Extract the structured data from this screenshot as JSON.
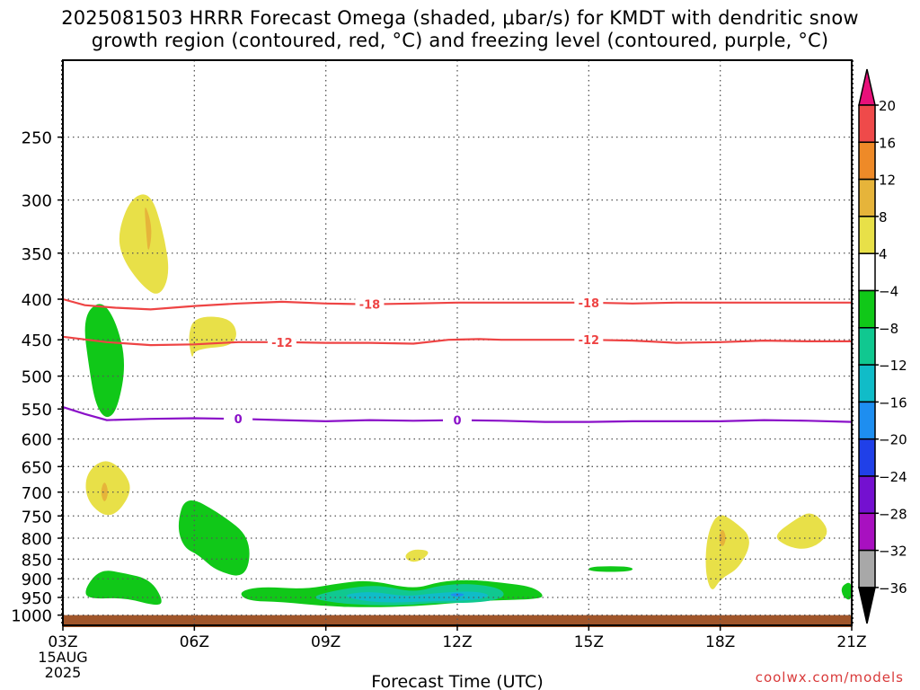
{
  "title": {
    "line1": "2025081503 HRRR Forecast Omega (shaded, μbar/s) for KMDT with dendritic snow",
    "line2": "growth region (contoured, red, °C) and freezing level (contoured, purple, °C)"
  },
  "credit": "coolwx.com/models",
  "chart_data": {
    "type": "heatmap",
    "xlabel": "Forecast Time (UTC)",
    "x_ticks": [
      "03Z",
      "06Z",
      "09Z",
      "12Z",
      "15Z",
      "18Z",
      "21Z"
    ],
    "x_tick_values": [
      3,
      6,
      9,
      12,
      15,
      18,
      21
    ],
    "x_sub_labels": [
      "15AUG",
      "2025"
    ],
    "xlim": [
      3,
      21
    ],
    "y_scale": "log",
    "y_ticks": [
      250,
      300,
      350,
      400,
      450,
      500,
      550,
      600,
      650,
      700,
      750,
      800,
      850,
      900,
      950,
      1000
    ],
    "ylim": [
      1030,
      200
    ],
    "grid": true,
    "colorbar": {
      "labels": [
        "20",
        "16",
        "12",
        "8",
        "4",
        "−4",
        "−8",
        "−12",
        "−16",
        "−20",
        "−24",
        "−28",
        "−32",
        "−36"
      ],
      "colors": [
        "#e8107a",
        "#ef4a4a",
        "#ee8a28",
        "#e6b43a",
        "#e8e048",
        "#ffffff",
        "#10c818",
        "#10c890",
        "#10bcc8",
        "#1e8ef0",
        "#2040e8",
        "#7410d0",
        "#a810c0",
        "#a8a8a8",
        "#000000"
      ]
    },
    "contours": [
      {
        "name": "-18",
        "color": "#ee4444",
        "labels_at": [
          10,
          15
        ],
        "points": [
          [
            3,
            400
          ],
          [
            3.5,
            407
          ],
          [
            4.2,
            410
          ],
          [
            5,
            412
          ],
          [
            6,
            408
          ],
          [
            7,
            405
          ],
          [
            8,
            403
          ],
          [
            9,
            405
          ],
          [
            10,
            406
          ],
          [
            11,
            405
          ],
          [
            12,
            404
          ],
          [
            13,
            404
          ],
          [
            14,
            404
          ],
          [
            15,
            404
          ],
          [
            16,
            405
          ],
          [
            17,
            404
          ],
          [
            18,
            404
          ],
          [
            19,
            404
          ],
          [
            20,
            404
          ],
          [
            21,
            404
          ]
        ]
      },
      {
        "name": "-12",
        "color": "#ee4444",
        "labels_at": [
          8,
          15
        ],
        "points": [
          [
            3,
            446
          ],
          [
            4,
            453
          ],
          [
            5,
            457
          ],
          [
            6,
            456
          ],
          [
            7,
            453
          ],
          [
            8,
            453
          ],
          [
            9,
            454
          ],
          [
            10,
            454
          ],
          [
            11,
            455
          ],
          [
            11.8,
            450
          ],
          [
            12.5,
            449
          ],
          [
            13,
            450
          ],
          [
            14,
            450
          ],
          [
            15,
            450
          ],
          [
            16,
            451
          ],
          [
            17,
            454
          ],
          [
            18,
            453
          ],
          [
            19,
            451
          ],
          [
            20,
            452
          ],
          [
            21,
            452
          ]
        ]
      },
      {
        "name": "0",
        "color": "#8a10c8",
        "labels_at": [
          7,
          12
        ],
        "points": [
          [
            3,
            547
          ],
          [
            3.5,
            558
          ],
          [
            4,
            568
          ],
          [
            5,
            566
          ],
          [
            6,
            565
          ],
          [
            7,
            566
          ],
          [
            8,
            568
          ],
          [
            9,
            570
          ],
          [
            10,
            568
          ],
          [
            11,
            569
          ],
          [
            12,
            568
          ],
          [
            13,
            569
          ],
          [
            14,
            571
          ],
          [
            15,
            571
          ],
          [
            16,
            570
          ],
          [
            17,
            570
          ],
          [
            18,
            570
          ],
          [
            19,
            568
          ],
          [
            20,
            569
          ],
          [
            21,
            571
          ]
        ]
      }
    ],
    "regions": [
      {
        "level": "4",
        "color": "#e8e048",
        "points": [
          [
            4.25,
            330
          ],
          [
            4.55,
            298
          ],
          [
            5.0,
            293
          ],
          [
            5.3,
            330
          ],
          [
            5.45,
            372
          ],
          [
            5.2,
            398
          ],
          [
            4.8,
            385
          ],
          [
            4.35,
            355
          ]
        ]
      },
      {
        "level": "8",
        "color": "#e6b43a",
        "points": [
          [
            4.85,
            300
          ],
          [
            5.05,
            325
          ],
          [
            4.95,
            353
          ],
          [
            4.9,
            330
          ]
        ]
      },
      {
        "level": "4",
        "color": "#e8e048",
        "points": [
          [
            6.0,
            420
          ],
          [
            6.9,
            422
          ],
          [
            7.0,
            458
          ],
          [
            6.0,
            462
          ],
          [
            5.95,
            478
          ],
          [
            5.85,
            446
          ]
        ]
      },
      {
        "level": "-4",
        "color": "#10c818",
        "points": [
          [
            3.45,
            422
          ],
          [
            3.85,
            400
          ],
          [
            4.2,
            424
          ],
          [
            4.45,
            480
          ],
          [
            4.25,
            550
          ],
          [
            4.0,
            568
          ],
          [
            3.75,
            545
          ],
          [
            3.6,
            490
          ]
        ]
      },
      {
        "level": "4",
        "color": "#e8e048",
        "points": [
          [
            3.5,
            665
          ],
          [
            3.95,
            633
          ],
          [
            4.4,
            658
          ],
          [
            4.6,
            700
          ],
          [
            4.1,
            760
          ],
          [
            3.55,
            722
          ]
        ]
      },
      {
        "level": "8",
        "color": "#e6b43a",
        "points": [
          [
            3.95,
            675
          ],
          [
            4.05,
            700
          ],
          [
            3.95,
            725
          ],
          [
            3.85,
            700
          ]
        ]
      },
      {
        "level": "-4",
        "color": "#10c818",
        "points": [
          [
            5.6,
            770
          ],
          [
            5.8,
            705
          ],
          [
            6.6,
            745
          ],
          [
            7.3,
            800
          ],
          [
            7.2,
            900
          ],
          [
            6.5,
            880
          ],
          [
            6.1,
            840
          ],
          [
            5.75,
            822
          ]
        ]
      },
      {
        "level": "-4",
        "color": "#10c818",
        "points": [
          [
            3.5,
            925
          ],
          [
            3.85,
            875
          ],
          [
            4.4,
            885
          ],
          [
            5.0,
            902
          ],
          [
            5.3,
            960
          ],
          [
            5.15,
            975
          ],
          [
            4.4,
            950
          ],
          [
            3.55,
            955
          ]
        ]
      },
      {
        "level": "-4",
        "color": "#10c818",
        "points": [
          [
            7.0,
            935
          ],
          [
            7.5,
            920
          ],
          [
            8.5,
            928
          ],
          [
            9.3,
            912
          ],
          [
            10.0,
            903
          ],
          [
            11.0,
            928
          ],
          [
            11.6,
            907
          ],
          [
            12.3,
            902
          ],
          [
            13.0,
            910
          ],
          [
            13.7,
            920
          ],
          [
            14.0,
            945
          ],
          [
            13.8,
            955
          ],
          [
            12.8,
            958
          ],
          [
            12.0,
            965
          ],
          [
            11.0,
            975
          ],
          [
            10.0,
            978
          ],
          [
            9.0,
            975
          ],
          [
            8.0,
            962
          ],
          [
            7.2,
            960
          ]
        ]
      },
      {
        "level": "-8",
        "color": "#10c890",
        "points": [
          [
            8.6,
            950
          ],
          [
            9.3,
            928
          ],
          [
            10.2,
            915
          ],
          [
            11.0,
            937
          ],
          [
            11.6,
            917
          ],
          [
            12.3,
            912
          ],
          [
            13.0,
            925
          ],
          [
            13.1,
            950
          ],
          [
            12.5,
            965
          ],
          [
            11.5,
            965
          ],
          [
            10.8,
            972
          ],
          [
            10.0,
            972
          ],
          [
            9.2,
            965
          ]
        ]
      },
      {
        "level": "-12",
        "color": "#10bcc8",
        "points": [
          [
            9.3,
            945
          ],
          [
            10.0,
            932
          ],
          [
            10.8,
            948
          ],
          [
            11.5,
            938
          ],
          [
            12.4,
            932
          ],
          [
            12.8,
            945
          ],
          [
            12.4,
            958
          ],
          [
            11.5,
            960
          ],
          [
            10.8,
            964
          ],
          [
            10.0,
            963
          ]
        ]
      },
      {
        "level": "-16",
        "color": "#1e8ef0",
        "points": [
          [
            11.8,
            942
          ],
          [
            12.0,
            937
          ],
          [
            12.2,
            942
          ],
          [
            12.0,
            950
          ]
        ]
      },
      {
        "level": "4",
        "color": "#e8e048",
        "points": [
          [
            10.8,
            840
          ],
          [
            11.0,
            825
          ],
          [
            11.4,
            830
          ],
          [
            11.2,
            852
          ],
          [
            11.0,
            858
          ],
          [
            10.85,
            852
          ]
        ]
      },
      {
        "level": "-4",
        "color": "#10c818",
        "points": [
          [
            15.0,
            868
          ],
          [
            16.0,
            868
          ],
          [
            16.0,
            882
          ],
          [
            15.0,
            882
          ]
        ]
      },
      {
        "level": "4",
        "color": "#e8e048",
        "points": [
          [
            17.7,
            790
          ],
          [
            17.95,
            742
          ],
          [
            18.3,
            760
          ],
          [
            18.75,
            800
          ],
          [
            18.45,
            872
          ],
          [
            18.0,
            900
          ],
          [
            17.8,
            940
          ],
          [
            17.65,
            880
          ]
        ]
      },
      {
        "level": "8",
        "color": "#e6b43a",
        "points": [
          [
            17.95,
            800
          ],
          [
            18.05,
            775
          ],
          [
            18.15,
            800
          ],
          [
            18.05,
            825
          ]
        ]
      },
      {
        "level": "4",
        "color": "#e8e048",
        "points": [
          [
            19.2,
            795
          ],
          [
            19.7,
            758
          ],
          [
            20.1,
            738
          ],
          [
            20.5,
            780
          ],
          [
            20.3,
            812
          ],
          [
            19.9,
            828
          ],
          [
            19.5,
            818
          ]
        ]
      },
      {
        "level": "-4",
        "color": "#10c818",
        "points": [
          [
            20.75,
            920
          ],
          [
            21.0,
            905
          ],
          [
            21.0,
            960
          ],
          [
            20.8,
            950
          ]
        ]
      }
    ],
    "ground": {
      "color": "#a0552a",
      "from": 1000,
      "to": 1030
    }
  }
}
